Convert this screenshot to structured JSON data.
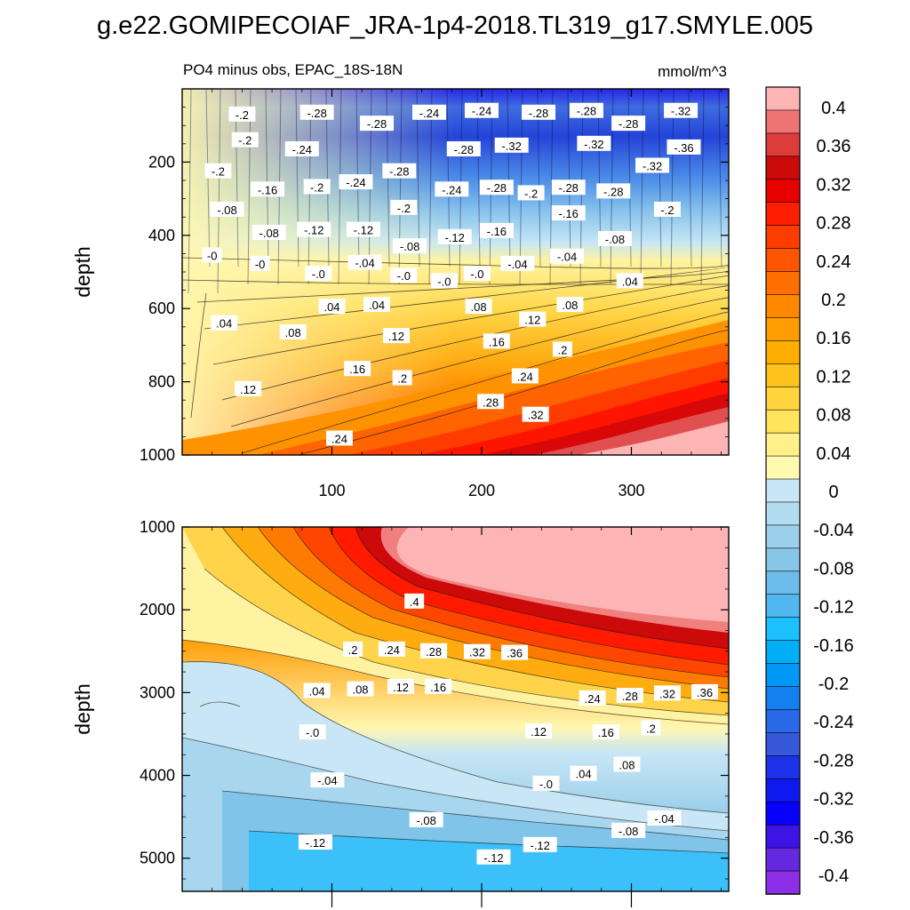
{
  "title": "g.e22.GOMIPECOIAF_JRA-1p4-2018.TL319_g17.SMYLE.005",
  "colors": {
    "text": "#000000",
    "background": "#ffffff"
  },
  "chart_data": [
    {
      "type": "heatmap",
      "panel": "upper",
      "subtitle_left": "PO4 minus obs, EPAC_18S-18N",
      "subtitle_right": "mmol/m^3",
      "ylabel": "depth",
      "xlabel": "",
      "xlim": [
        0,
        365
      ],
      "ylim": [
        1000,
        0
      ],
      "x_ticks": [
        100,
        200,
        300
      ],
      "y_ticks": [
        200,
        400,
        600,
        800,
        1000
      ],
      "grid": false,
      "contour_labels": [
        {
          "t": "-.2",
          "x": 40,
          "y": 70
        },
        {
          "t": "-.28",
          "x": 90,
          "y": 65
        },
        {
          "t": "-.28",
          "x": 130,
          "y": 95
        },
        {
          "t": "-.24",
          "x": 165,
          "y": 65
        },
        {
          "t": "-.24",
          "x": 200,
          "y": 60
        },
        {
          "t": "-.28",
          "x": 238,
          "y": 65
        },
        {
          "t": "-.28",
          "x": 270,
          "y": 60
        },
        {
          "t": "-.28",
          "x": 298,
          "y": 95
        },
        {
          "t": "-.32",
          "x": 333,
          "y": 60
        },
        {
          "t": "-.2",
          "x": 42,
          "y": 140
        },
        {
          "t": "-.24",
          "x": 80,
          "y": 165
        },
        {
          "t": "-.28",
          "x": 188,
          "y": 165
        },
        {
          "t": "-.32",
          "x": 220,
          "y": 155
        },
        {
          "t": "-.32",
          "x": 275,
          "y": 150
        },
        {
          "t": "-.36",
          "x": 335,
          "y": 160
        },
        {
          "t": "-.2",
          "x": 24,
          "y": 225
        },
        {
          "t": "-.28",
          "x": 145,
          "y": 225
        },
        {
          "t": "-.24",
          "x": 116,
          "y": 255
        },
        {
          "t": "-.32",
          "x": 314,
          "y": 210
        },
        {
          "t": "-.16",
          "x": 57,
          "y": 275
        },
        {
          "t": "-.2",
          "x": 90,
          "y": 268
        },
        {
          "t": "-.24",
          "x": 180,
          "y": 275
        },
        {
          "t": "-.28",
          "x": 210,
          "y": 270
        },
        {
          "t": "-.2",
          "x": 233,
          "y": 285
        },
        {
          "t": "-.28",
          "x": 258,
          "y": 270
        },
        {
          "t": "-.28",
          "x": 288,
          "y": 280
        },
        {
          "t": "-.08",
          "x": 30,
          "y": 330
        },
        {
          "t": "-.2",
          "x": 148,
          "y": 325
        },
        {
          "t": "-.16",
          "x": 258,
          "y": 340
        },
        {
          "t": "-.2",
          "x": 324,
          "y": 330
        },
        {
          "t": "-.08",
          "x": 58,
          "y": 393
        },
        {
          "t": "-.12",
          "x": 88,
          "y": 385
        },
        {
          "t": "-.12",
          "x": 121,
          "y": 385
        },
        {
          "t": "-.12",
          "x": 182,
          "y": 405
        },
        {
          "t": "-.16",
          "x": 210,
          "y": 388
        },
        {
          "t": "-.08",
          "x": 289,
          "y": 410
        },
        {
          "t": "-.08",
          "x": 152,
          "y": 430
        },
        {
          "t": "-0",
          "x": 20,
          "y": 455
        },
        {
          "t": "-.04",
          "x": 122,
          "y": 475
        },
        {
          "t": "-.04",
          "x": 224,
          "y": 478
        },
        {
          "t": "-.04",
          "x": 257,
          "y": 458
        },
        {
          "t": "-0",
          "x": 52,
          "y": 478
        },
        {
          "t": "-.0",
          "x": 91,
          "y": 505
        },
        {
          "t": "-.0",
          "x": 148,
          "y": 510
        },
        {
          "t": "-.0",
          "x": 175,
          "y": 525
        },
        {
          "t": "-.0",
          "x": 197,
          "y": 505
        },
        {
          "t": ".04",
          "x": 299,
          "y": 525
        },
        {
          "t": ".08",
          "x": 259,
          "y": 590
        },
        {
          "t": ".04",
          "x": 100,
          "y": 595
        },
        {
          "t": ".04",
          "x": 130,
          "y": 590
        },
        {
          "t": ".08",
          "x": 198,
          "y": 595
        },
        {
          "t": ".04",
          "x": 28,
          "y": 640
        },
        {
          "t": ".12",
          "x": 234,
          "y": 630
        },
        {
          "t": ".08",
          "x": 74,
          "y": 665
        },
        {
          "t": ".12",
          "x": 143,
          "y": 675
        },
        {
          "t": ".16",
          "x": 210,
          "y": 690
        },
        {
          "t": ".2",
          "x": 254,
          "y": 712
        },
        {
          "t": ".16",
          "x": 117,
          "y": 765
        },
        {
          "t": ".2",
          "x": 147,
          "y": 790
        },
        {
          "t": ".24",
          "x": 229,
          "y": 785
        },
        {
          "t": ".12",
          "x": 44,
          "y": 820
        },
        {
          "t": ".28",
          "x": 206,
          "y": 855
        },
        {
          "t": ".32",
          "x": 236,
          "y": 890
        },
        {
          "t": ".24",
          "x": 105,
          "y": 955
        }
      ]
    },
    {
      "type": "heatmap",
      "panel": "lower",
      "ylabel": "depth",
      "xlabel": "",
      "xlim": [
        0,
        365
      ],
      "ylim": [
        5400,
        1000
      ],
      "y_ticks": [
        1000,
        2000,
        3000,
        4000,
        5000
      ],
      "grid": false,
      "contour_labels": [
        {
          "t": ".4",
          "x": 155,
          "y": 1900
        },
        {
          "t": ".2",
          "x": 114,
          "y": 2480
        },
        {
          "t": ".24",
          "x": 140,
          "y": 2480
        },
        {
          "t": ".28",
          "x": 168,
          "y": 2500
        },
        {
          "t": ".32",
          "x": 197,
          "y": 2510
        },
        {
          "t": ".36",
          "x": 222,
          "y": 2520
        },
        {
          "t": ".04",
          "x": 90,
          "y": 2980
        },
        {
          "t": ".08",
          "x": 119,
          "y": 2960
        },
        {
          "t": ".12",
          "x": 146,
          "y": 2930
        },
        {
          "t": ".16",
          "x": 171,
          "y": 2930
        },
        {
          "t": ".24",
          "x": 274,
          "y": 3070
        },
        {
          "t": ".28",
          "x": 299,
          "y": 3040
        },
        {
          "t": ".32",
          "x": 324,
          "y": 3010
        },
        {
          "t": ".36",
          "x": 349,
          "y": 2995
        },
        {
          "t": "-.0",
          "x": 87,
          "y": 3480
        },
        {
          "t": ".12",
          "x": 238,
          "y": 3470
        },
        {
          "t": ".16",
          "x": 283,
          "y": 3480
        },
        {
          "t": ".2",
          "x": 313,
          "y": 3430
        },
        {
          "t": ".08",
          "x": 297,
          "y": 3870
        },
        {
          "t": ".04",
          "x": 268,
          "y": 3980
        },
        {
          "t": "-.04",
          "x": 97,
          "y": 4060
        },
        {
          "t": "-.0",
          "x": 243,
          "y": 4100
        },
        {
          "t": "-.04",
          "x": 322,
          "y": 4520
        },
        {
          "t": "-.08",
          "x": 163,
          "y": 4540
        },
        {
          "t": "-.08",
          "x": 298,
          "y": 4670
        },
        {
          "t": "-.12",
          "x": 89,
          "y": 4810
        },
        {
          "t": "-.12",
          "x": 239,
          "y": 4840
        },
        {
          "t": "-.12",
          "x": 208,
          "y": 4990
        }
      ]
    }
  ],
  "colorbar": {
    "labels": [
      "0.4",
      "0.36",
      "0.32",
      "0.28",
      "0.24",
      "0.2",
      "0.16",
      "0.12",
      "0.08",
      "0.04",
      "0",
      "-0.04",
      "-0.08",
      "-0.12",
      "-0.16",
      "-0.2",
      "-0.24",
      "-0.28",
      "-0.32",
      "-0.36",
      "-0.4"
    ],
    "colors": [
      "#fcb4b4",
      "#f07474",
      "#dc3c3c",
      "#cc0a0a",
      "#e80000",
      "#ff1e00",
      "#ff3c00",
      "#ff5500",
      "#ff6e00",
      "#ff8800",
      "#ff9c00",
      "#ffae00",
      "#ffc21c",
      "#ffd43c",
      "#ffe45c",
      "#fff08a",
      "#fffab0",
      "#c8e6f5",
      "#b2dcf0",
      "#9ccfeb",
      "#88c6e8",
      "#6cbdea",
      "#50b8f0",
      "#1cc0ff",
      "#00aef8",
      "#0098f6",
      "#1480f0",
      "#2a6ae8",
      "#3858dc",
      "#1c32e6",
      "#1018f0",
      "#0800ff",
      "#3c14e6",
      "#6428e0",
      "#8c2ee6"
    ]
  }
}
